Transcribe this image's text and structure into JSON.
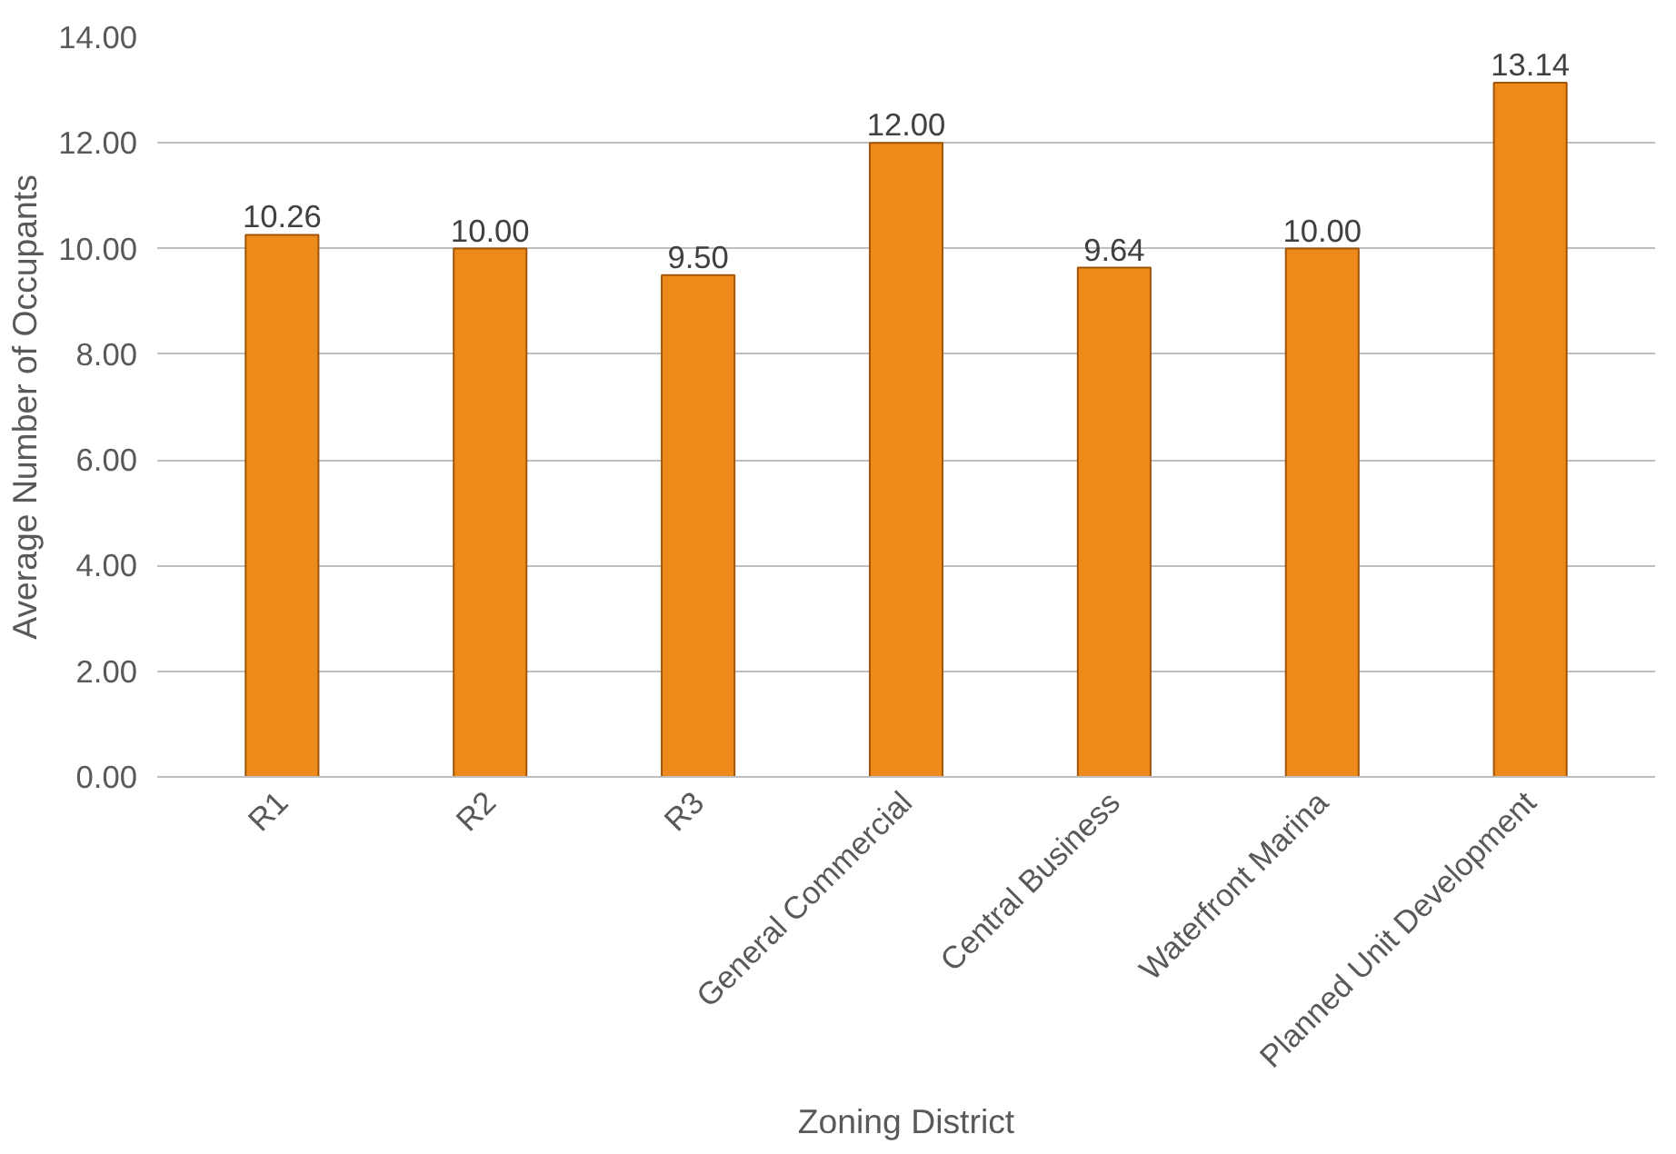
{
  "chart_data": {
    "type": "bar",
    "xlabel": "Zoning District",
    "ylabel": "Average Number of Occupants",
    "categories": [
      "R1",
      "R2",
      "R3",
      "General Commercial",
      "Central Business",
      "Waterfront Marina",
      "Planned Unit Development"
    ],
    "values": [
      10.26,
      10.0,
      9.5,
      12.0,
      9.64,
      10.0,
      13.14
    ],
    "value_labels": [
      "10.26",
      "10.00",
      "9.50",
      "12.00",
      "9.64",
      "10.00",
      "13.14"
    ],
    "color": "#ee8a1a",
    "ylim": [
      0,
      14
    ],
    "yticks": [
      {
        "value": 0,
        "label": "0.00"
      },
      {
        "value": 2,
        "label": "2.00"
      },
      {
        "value": 4,
        "label": "4.00"
      },
      {
        "value": 6,
        "label": "6.00"
      },
      {
        "value": 8,
        "label": "8.00"
      },
      {
        "value": 10,
        "label": "10.00"
      },
      {
        "value": 12,
        "label": "12.00"
      },
      {
        "value": 14,
        "label": "14.00"
      }
    ],
    "grid": "y"
  }
}
